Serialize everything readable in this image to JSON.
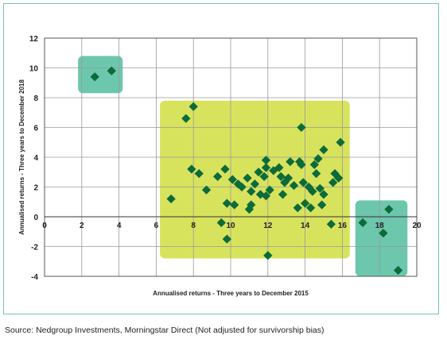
{
  "chart_data": {
    "type": "scatter",
    "xlabel": "Annualised returns - Three years to December 2015",
    "ylabel": "Annualised returns - Three years to December 2018",
    "xlim": [
      0,
      20
    ],
    "ylim": [
      -4,
      12
    ],
    "x_ticks": [
      "0",
      "2",
      "4",
      "6",
      "8",
      "10",
      "12",
      "14",
      "16",
      "18",
      "20"
    ],
    "y_ticks": [
      "12",
      "10",
      "8",
      "6",
      "4",
      "2",
      "0",
      "-2",
      "-4"
    ],
    "grid": true,
    "marker_color": "#0d6b3a",
    "highlight_regions": [
      {
        "x_range": [
          1.8,
          4.2
        ],
        "y_range": [
          8.3,
          10.8
        ],
        "color": "#6cc7ad"
      },
      {
        "x_range": [
          6.2,
          16.4
        ],
        "y_range": [
          -2.8,
          7.8
        ],
        "color": "#d8e35d"
      },
      {
        "x_range": [
          16.7,
          19.5
        ],
        "y_range": [
          -4.0,
          1.1
        ],
        "color": "#6cc7ad"
      }
    ],
    "points": [
      {
        "x": 2.7,
        "y": 9.4
      },
      {
        "x": 3.6,
        "y": 9.8
      },
      {
        "x": 7.6,
        "y": 6.6
      },
      {
        "x": 8.0,
        "y": 7.4
      },
      {
        "x": 6.8,
        "y": 1.2
      },
      {
        "x": 7.9,
        "y": 3.2
      },
      {
        "x": 8.3,
        "y": 2.9
      },
      {
        "x": 8.7,
        "y": 1.8
      },
      {
        "x": 9.3,
        "y": 2.7
      },
      {
        "x": 9.5,
        "y": -0.4
      },
      {
        "x": 9.7,
        "y": 3.2
      },
      {
        "x": 9.8,
        "y": 0.9
      },
      {
        "x": 9.8,
        "y": -1.5
      },
      {
        "x": 10.2,
        "y": 0.8
      },
      {
        "x": 10.1,
        "y": 2.5
      },
      {
        "x": 10.4,
        "y": 2.2
      },
      {
        "x": 10.6,
        "y": 2.0
      },
      {
        "x": 10.9,
        "y": 2.6
      },
      {
        "x": 11.0,
        "y": 0.5
      },
      {
        "x": 11.1,
        "y": 0.8
      },
      {
        "x": 11.1,
        "y": 1.7
      },
      {
        "x": 11.3,
        "y": 2.2
      },
      {
        "x": 11.5,
        "y": 3.0
      },
      {
        "x": 11.6,
        "y": 1.5
      },
      {
        "x": 11.8,
        "y": 2.7
      },
      {
        "x": 11.9,
        "y": 3.3
      },
      {
        "x": 11.9,
        "y": 3.8
      },
      {
        "x": 11.9,
        "y": 1.4
      },
      {
        "x": 12.1,
        "y": 1.8
      },
      {
        "x": 12.3,
        "y": 3.1
      },
      {
        "x": 12.0,
        "y": -2.6
      },
      {
        "x": 12.6,
        "y": 3.3
      },
      {
        "x": 12.7,
        "y": 2.7
      },
      {
        "x": 12.8,
        "y": 1.5
      },
      {
        "x": 12.9,
        "y": 2.3
      },
      {
        "x": 13.1,
        "y": 2.6
      },
      {
        "x": 13.2,
        "y": 3.7
      },
      {
        "x": 13.4,
        "y": 2.1
      },
      {
        "x": 13.6,
        "y": 0.6
      },
      {
        "x": 13.7,
        "y": 3.7
      },
      {
        "x": 13.8,
        "y": 3.5
      },
      {
        "x": 13.8,
        "y": 6.0
      },
      {
        "x": 13.9,
        "y": 2.3
      },
      {
        "x": 14.0,
        "y": 0.9
      },
      {
        "x": 14.2,
        "y": 2.0
      },
      {
        "x": 14.3,
        "y": 0.6
      },
      {
        "x": 14.4,
        "y": 1.7
      },
      {
        "x": 14.5,
        "y": 3.5
      },
      {
        "x": 14.6,
        "y": 2.9
      },
      {
        "x": 14.7,
        "y": 3.9
      },
      {
        "x": 14.8,
        "y": 1.9
      },
      {
        "x": 15.0,
        "y": 1.5
      },
      {
        "x": 15.0,
        "y": 4.5
      },
      {
        "x": 15.4,
        "y": -0.5
      },
      {
        "x": 15.5,
        "y": 2.3
      },
      {
        "x": 15.6,
        "y": 2.9
      },
      {
        "x": 15.8,
        "y": 2.6
      },
      {
        "x": 15.9,
        "y": 5.0
      },
      {
        "x": 14.9,
        "y": 0.8
      },
      {
        "x": 17.1,
        "y": -0.4
      },
      {
        "x": 18.2,
        "y": -1.1
      },
      {
        "x": 18.5,
        "y": 0.5
      },
      {
        "x": 19.0,
        "y": -3.6
      }
    ]
  },
  "source": "Source: Nedgroup Investments, Morningstar Direct (Not adjusted for survivorship bias)"
}
